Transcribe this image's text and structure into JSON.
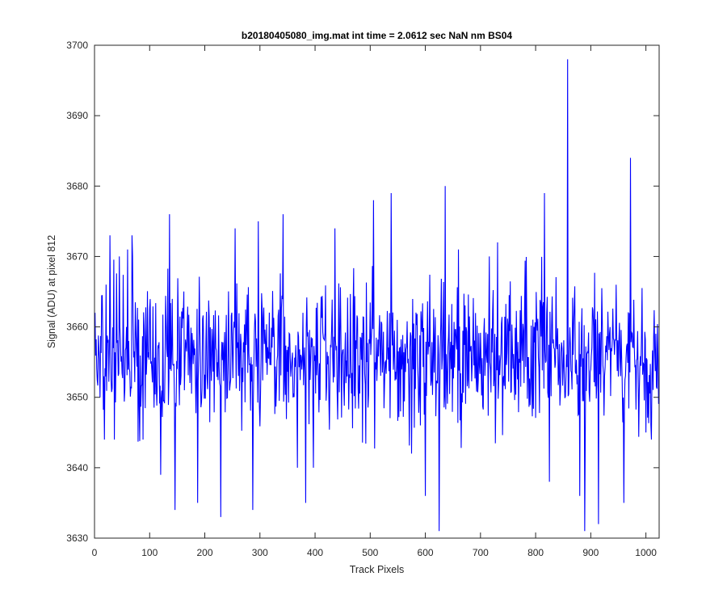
{
  "chart_data": {
    "type": "line",
    "title": "b20180405080_img.mat int time = 2.0612 sec  NaN nm BS04",
    "xlabel": "Track Pixels",
    "ylabel": "Signal (ADU) at pixel 812",
    "xlim": [
      0,
      1024
    ],
    "ylim": [
      3630,
      3700
    ],
    "x_ticks": [
      0,
      100,
      200,
      300,
      400,
      500,
      600,
      700,
      800,
      900,
      1000
    ],
    "y_ticks": [
      3630,
      3640,
      3650,
      3660,
      3670,
      3680,
      3690,
      3700
    ],
    "grid": false,
    "legend": "none",
    "series": [
      {
        "color": "#0000ff",
        "x_start": 1,
        "x_step": 1,
        "sample_count": 1024,
        "mean": 3656,
        "noise_amplitude": 5,
        "notable_points": [
          {
            "x": 1,
            "y": 3662
          },
          {
            "x": 10,
            "y": 3650
          },
          {
            "x": 18,
            "y": 3644
          },
          {
            "x": 28,
            "y": 3673
          },
          {
            "x": 36,
            "y": 3644
          },
          {
            "x": 60,
            "y": 3671
          },
          {
            "x": 68,
            "y": 3673
          },
          {
            "x": 88,
            "y": 3644
          },
          {
            "x": 120,
            "y": 3639
          },
          {
            "x": 136,
            "y": 3676
          },
          {
            "x": 146,
            "y": 3634
          },
          {
            "x": 187,
            "y": 3635
          },
          {
            "x": 229,
            "y": 3633
          },
          {
            "x": 255,
            "y": 3674
          },
          {
            "x": 287,
            "y": 3634
          },
          {
            "x": 297,
            "y": 3675
          },
          {
            "x": 342,
            "y": 3676
          },
          {
            "x": 368,
            "y": 3640
          },
          {
            "x": 383,
            "y": 3635
          },
          {
            "x": 397,
            "y": 3640
          },
          {
            "x": 436,
            "y": 3674
          },
          {
            "x": 506,
            "y": 3678
          },
          {
            "x": 538,
            "y": 3679
          },
          {
            "x": 555,
            "y": 3648
          },
          {
            "x": 600,
            "y": 3636
          },
          {
            "x": 625,
            "y": 3631
          },
          {
            "x": 636,
            "y": 3680
          },
          {
            "x": 660,
            "y": 3671
          },
          {
            "x": 731,
            "y": 3672
          },
          {
            "x": 816,
            "y": 3679
          },
          {
            "x": 825,
            "y": 3638
          },
          {
            "x": 858,
            "y": 3698
          },
          {
            "x": 880,
            "y": 3636
          },
          {
            "x": 889,
            "y": 3631
          },
          {
            "x": 914,
            "y": 3632
          },
          {
            "x": 960,
            "y": 3635
          },
          {
            "x": 972,
            "y": 3684
          },
          {
            "x": 1000,
            "y": 3645
          },
          {
            "x": 1010,
            "y": 3644
          },
          {
            "x": 1024,
            "y": 3650
          }
        ]
      }
    ]
  }
}
